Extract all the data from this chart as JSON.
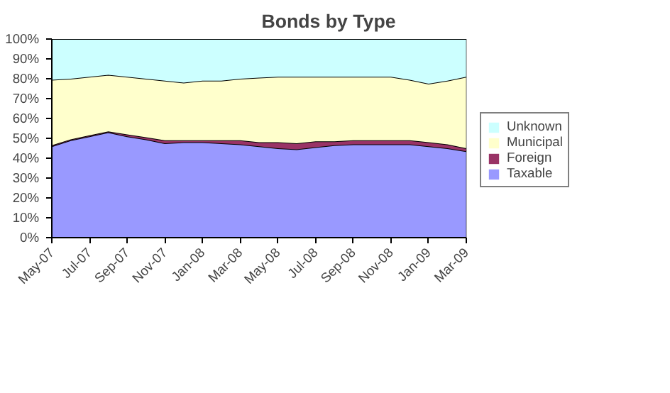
{
  "chart_data": {
    "type": "area",
    "title": "Bonds by Type",
    "stacked": true,
    "categories": [
      "May-07",
      null,
      "Jul-07",
      null,
      "Sep-07",
      null,
      "Nov-07",
      null,
      "Jan-08",
      null,
      "Mar-08",
      null,
      "May-08",
      null,
      "Jul-08",
      null,
      "Sep-08",
      null,
      "Nov-08",
      null,
      "Jan-09",
      null,
      "Mar-09"
    ],
    "series": [
      {
        "name": "Taxable",
        "color": "#9999ff",
        "values": [
          46,
          49,
          51,
          53,
          51,
          49.5,
          47.5,
          48,
          48,
          47.5,
          47,
          46,
          45,
          44.5,
          45.5,
          46.5,
          47,
          47,
          47,
          47,
          46,
          45,
          43.5
        ]
      },
      {
        "name": "Foreign",
        "color": "#993366",
        "values": [
          0.5,
          0.5,
          0.5,
          0.5,
          1,
          1,
          1.5,
          1,
          1,
          1.5,
          2,
          2,
          3,
          3,
          3,
          2,
          2,
          2,
          2,
          2,
          2,
          2,
          1.5
        ]
      },
      {
        "name": "Municipal",
        "color": "#ffffcc",
        "values": [
          33,
          30.5,
          29.5,
          28.5,
          29,
          29.5,
          30,
          29,
          30,
          30,
          31,
          32.5,
          33,
          33.5,
          32.5,
          32.5,
          32,
          32,
          32,
          30.5,
          29.5,
          32,
          36
        ]
      },
      {
        "name": "Unknown",
        "color": "#ccffff",
        "values": [
          20.5,
          20,
          19,
          18,
          19,
          20,
          21,
          22,
          21,
          21,
          20,
          19.5,
          19,
          19,
          19,
          19,
          19,
          19,
          19,
          20.5,
          22.5,
          21,
          19
        ]
      }
    ],
    "ylim": [
      0,
      100
    ],
    "yticks": [
      {
        "value": 0,
        "label": "0%"
      },
      {
        "value": 10,
        "label": "10%"
      },
      {
        "value": 20,
        "label": "20%"
      },
      {
        "value": 30,
        "label": "30%"
      },
      {
        "value": 40,
        "label": "40%"
      },
      {
        "value": 50,
        "label": "50%"
      },
      {
        "value": 60,
        "label": "60%"
      },
      {
        "value": 70,
        "label": "70%"
      },
      {
        "value": 80,
        "label": "80%"
      },
      {
        "value": 90,
        "label": "90%"
      },
      {
        "value": 100,
        "label": "100%"
      }
    ],
    "legend": "right"
  }
}
